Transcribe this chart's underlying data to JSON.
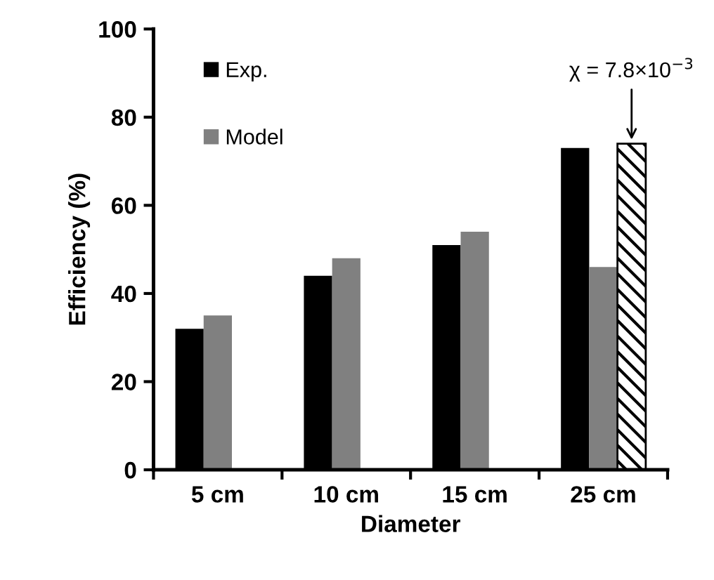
{
  "chart_data": {
    "type": "bar",
    "xlabel": "Diameter",
    "ylabel": "Efficiency (%)",
    "categories": [
      "5 cm",
      "10 cm",
      "15 cm",
      "25 cm"
    ],
    "series": [
      {
        "name": "Exp.",
        "color": "#000000",
        "values": [
          32,
          44,
          51,
          73
        ]
      },
      {
        "name": "Model",
        "color": "#808080",
        "values": [
          35,
          48,
          54,
          46
        ]
      },
      {
        "color": "#000000",
        "values": [
          null,
          null,
          null,
          74
        ]
      }
    ],
    "ylim": [
      0,
      100
    ],
    "yticks": [
      0,
      20,
      40,
      60,
      80,
      100
    ],
    "grid": false,
    "legend": "top left",
    "annotations": [
      "χ = 7.8×10$^{−3}$"
    ]
  }
}
